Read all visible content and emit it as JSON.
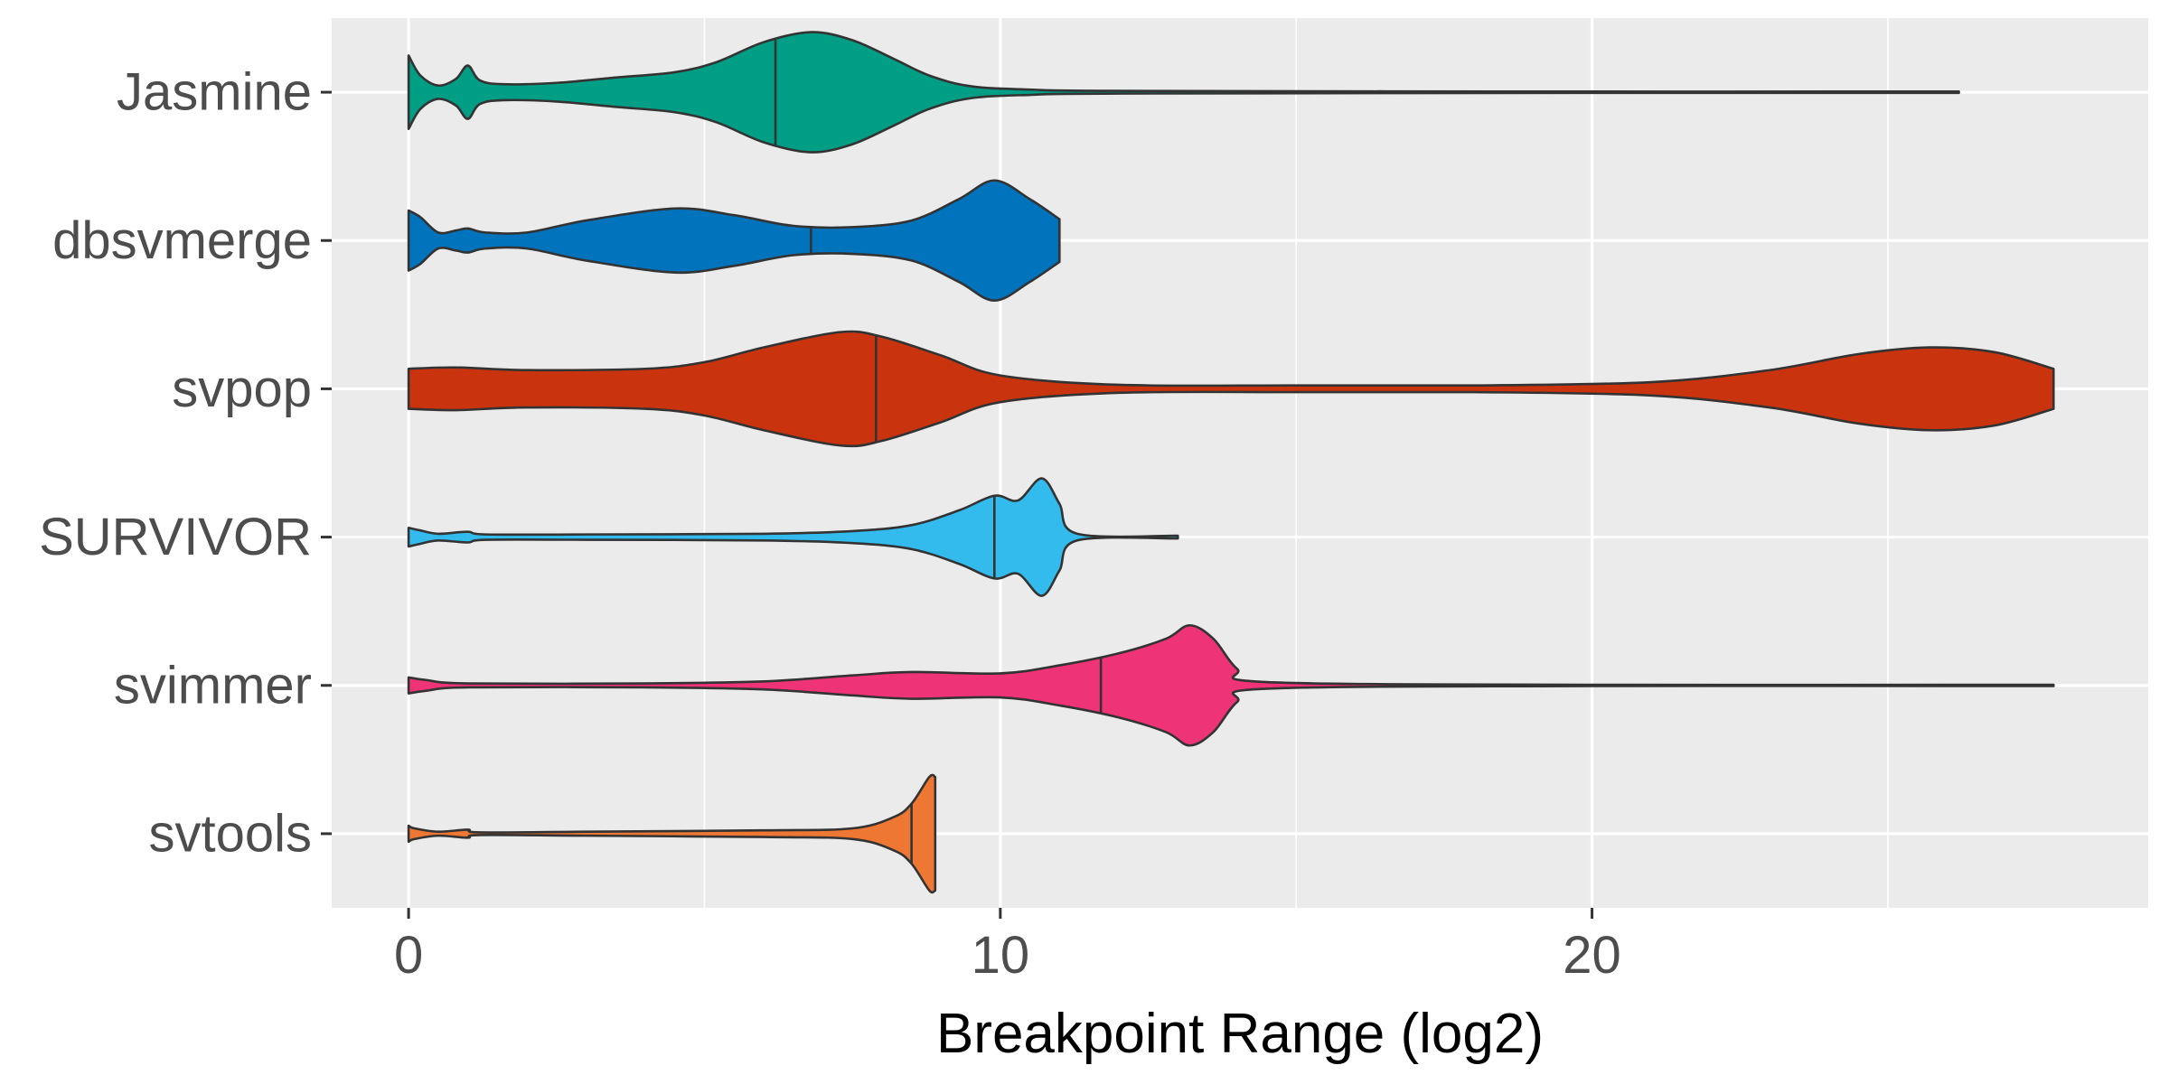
{
  "chart_data": {
    "type": "violin",
    "orientation": "horizontal",
    "xlabel": "Breakpoint Range (log2)",
    "ylabel": "",
    "xlim": [
      -1.3,
      29.4
    ],
    "x_ticks": [
      0,
      10,
      20
    ],
    "x_tick_labels": [
      "0",
      "10",
      "20"
    ],
    "x_minor_gridlines": [
      5,
      15,
      25
    ],
    "grid": true,
    "legend": "none",
    "panel_background": "#ebebeb",
    "categories": [
      "Jasmine",
      "dbsvmerge",
      "svpop",
      "SURVIVOR",
      "svimmer",
      "svtools"
    ],
    "series": [
      {
        "name": "Jasmine",
        "color": "#009e84",
        "median": 6.2,
        "profile": [
          [
            0,
            0.55
          ],
          [
            0.2,
            0.25
          ],
          [
            0.5,
            0.1
          ],
          [
            0.8,
            0.2
          ],
          [
            1.0,
            0.4
          ],
          [
            1.2,
            0.18
          ],
          [
            1.6,
            0.12
          ],
          [
            2.5,
            0.14
          ],
          [
            3.5,
            0.22
          ],
          [
            4.5,
            0.3
          ],
          [
            5.2,
            0.45
          ],
          [
            6.0,
            0.75
          ],
          [
            6.8,
            0.9
          ],
          [
            7.5,
            0.78
          ],
          [
            8.2,
            0.5
          ],
          [
            8.8,
            0.25
          ],
          [
            9.5,
            0.09
          ],
          [
            10.5,
            0.04
          ],
          [
            12,
            0.02
          ],
          [
            20,
            0.01
          ],
          [
            26.2,
            0.01
          ]
        ]
      },
      {
        "name": "dbsvmerge",
        "color": "#0073bd",
        "median": 6.8,
        "profile": [
          [
            0,
            0.45
          ],
          [
            0.2,
            0.35
          ],
          [
            0.5,
            0.12
          ],
          [
            0.8,
            0.15
          ],
          [
            1.0,
            0.18
          ],
          [
            1.3,
            0.12
          ],
          [
            2,
            0.12
          ],
          [
            3,
            0.3
          ],
          [
            4.5,
            0.48
          ],
          [
            5.5,
            0.38
          ],
          [
            6.5,
            0.22
          ],
          [
            7.5,
            0.2
          ],
          [
            8.5,
            0.3
          ],
          [
            9.3,
            0.62
          ],
          [
            9.9,
            0.9
          ],
          [
            10.5,
            0.62
          ],
          [
            11,
            0.32
          ]
        ]
      },
      {
        "name": "svpop",
        "color": "#c9340f",
        "median": 7.9,
        "profile": [
          [
            0,
            0.3
          ],
          [
            0.8,
            0.32
          ],
          [
            2,
            0.28
          ],
          [
            4,
            0.3
          ],
          [
            5,
            0.4
          ],
          [
            6,
            0.62
          ],
          [
            7.3,
            0.85
          ],
          [
            8,
            0.78
          ],
          [
            9,
            0.5
          ],
          [
            10,
            0.2
          ],
          [
            12,
            0.06
          ],
          [
            15,
            0.05
          ],
          [
            18,
            0.05
          ],
          [
            21,
            0.1
          ],
          [
            23,
            0.28
          ],
          [
            24.5,
            0.52
          ],
          [
            25.7,
            0.62
          ],
          [
            26.8,
            0.55
          ],
          [
            27.8,
            0.3
          ]
        ]
      },
      {
        "name": "SURVIVOR",
        "color": "#33bbee",
        "median": 9.9,
        "profile": [
          [
            0,
            0.14
          ],
          [
            0.2,
            0.1
          ],
          [
            0.5,
            0.05
          ],
          [
            1,
            0.08
          ],
          [
            1.3,
            0.04
          ],
          [
            3,
            0.04
          ],
          [
            6,
            0.05
          ],
          [
            7.5,
            0.09
          ],
          [
            8.5,
            0.18
          ],
          [
            9.3,
            0.4
          ],
          [
            9.9,
            0.62
          ],
          [
            10.3,
            0.55
          ],
          [
            10.7,
            0.88
          ],
          [
            11,
            0.5
          ],
          [
            11.3,
            0.05
          ],
          [
            13,
            0.02
          ]
        ]
      },
      {
        "name": "svimmer",
        "color": "#ee3377",
        "median": 11.7,
        "profile": [
          [
            0,
            0.12
          ],
          [
            0.3,
            0.08
          ],
          [
            1,
            0.03
          ],
          [
            4,
            0.03
          ],
          [
            6,
            0.06
          ],
          [
            7.5,
            0.15
          ],
          [
            8.5,
            0.2
          ],
          [
            10,
            0.18
          ],
          [
            11,
            0.3
          ],
          [
            12,
            0.48
          ],
          [
            12.8,
            0.7
          ],
          [
            13.2,
            0.9
          ],
          [
            13.6,
            0.7
          ],
          [
            14,
            0.25
          ],
          [
            14.5,
            0.05
          ],
          [
            20,
            0.01
          ],
          [
            27.8,
            0.01
          ]
        ]
      },
      {
        "name": "svtools",
        "color": "#ee7733",
        "median": 8.5,
        "profile": [
          [
            0,
            0.12
          ],
          [
            0.1,
            0.08
          ],
          [
            0.5,
            0.03
          ],
          [
            1,
            0.06
          ],
          [
            1.2,
            0.02
          ],
          [
            3,
            0.03
          ],
          [
            6,
            0.05
          ],
          [
            7.5,
            0.08
          ],
          [
            8.2,
            0.25
          ],
          [
            8.5,
            0.45
          ],
          [
            8.8,
            0.85
          ],
          [
            8.9,
            0.85
          ]
        ]
      }
    ]
  }
}
